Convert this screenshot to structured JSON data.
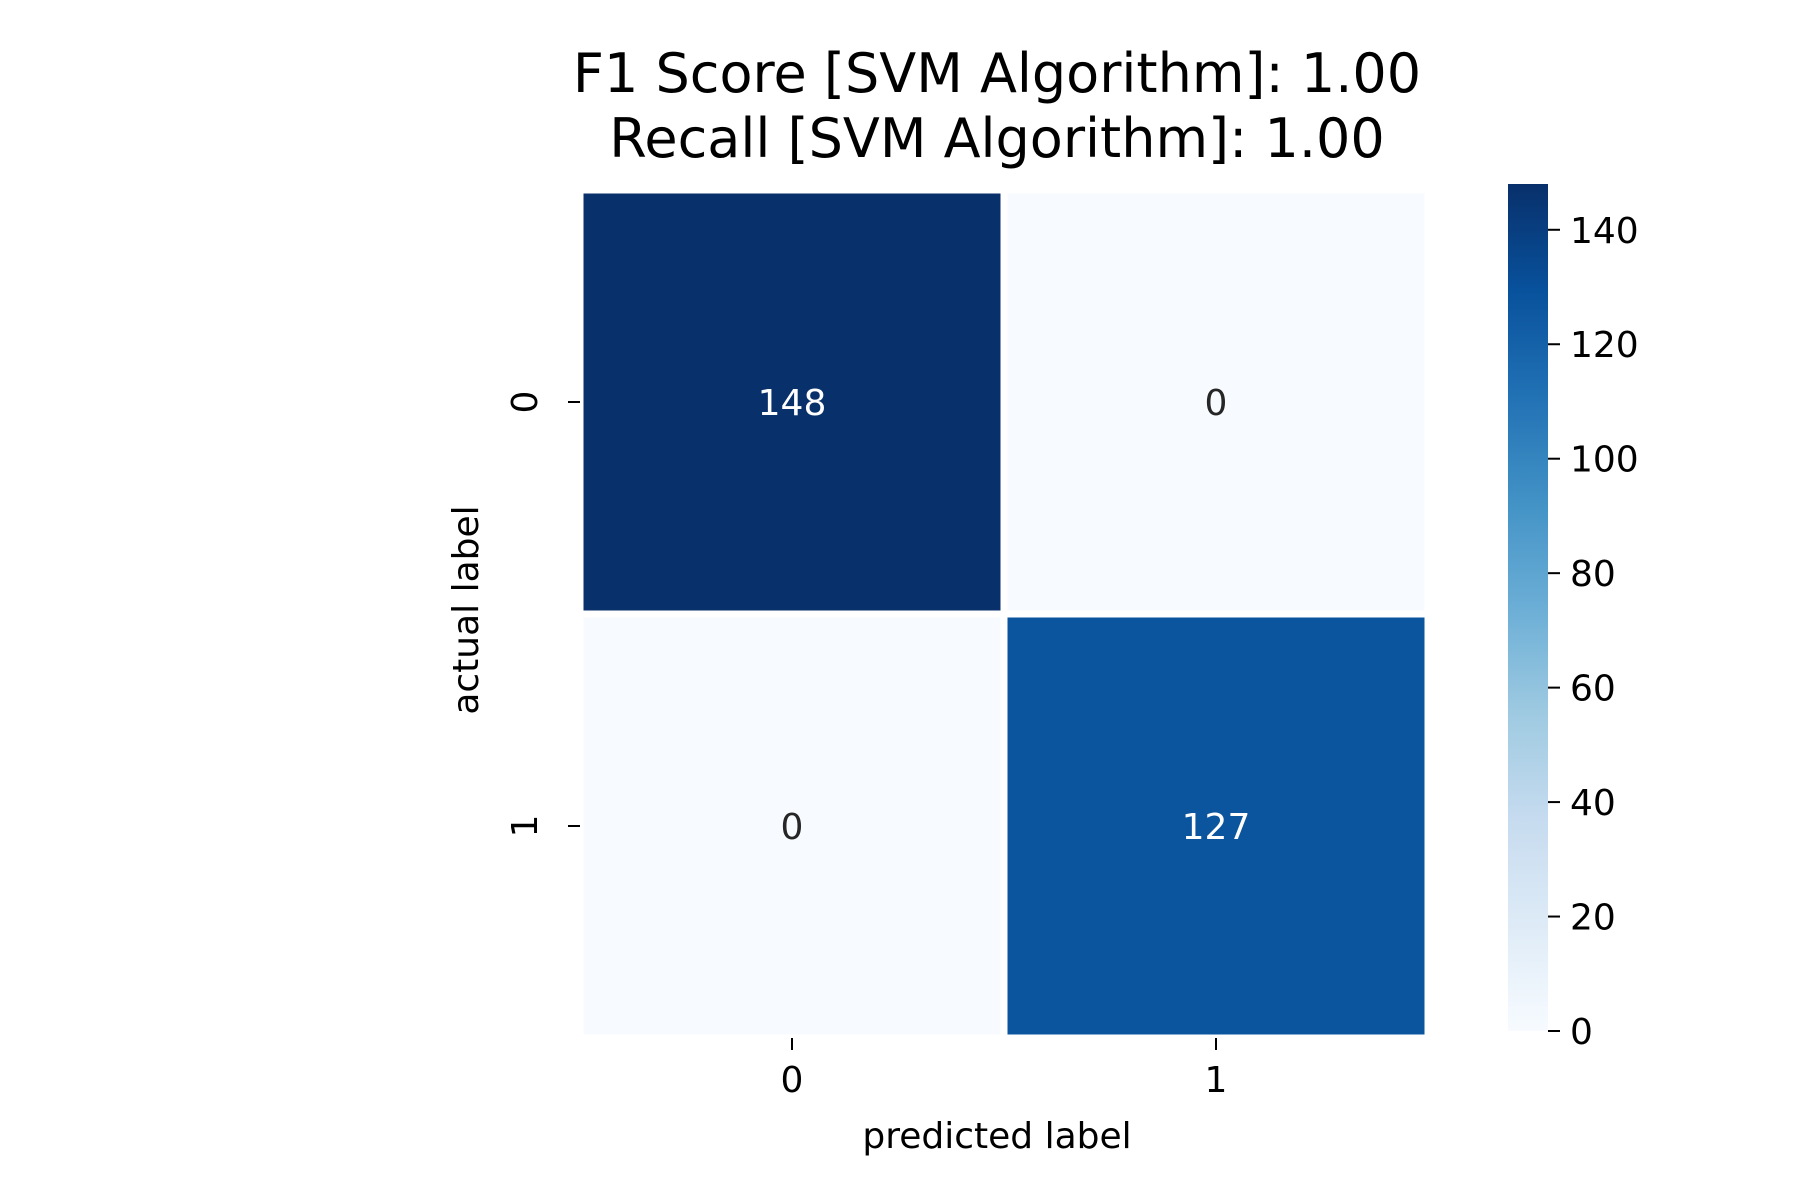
{
  "chart_data": {
    "type": "heatmap",
    "title": "F1 Score [SVM Algorithm]: 1.00",
    "subtitle": "Recall [SVM Algorithm]: 1.00",
    "xlabel": "predicted label",
    "ylabel": "actual label",
    "x_categories": [
      "0",
      "1"
    ],
    "y_categories": [
      "0",
      "1"
    ],
    "matrix": [
      [
        148,
        0
      ],
      [
        0,
        127
      ]
    ],
    "cell_labels": [
      [
        "148",
        "0"
      ],
      [
        "0",
        "127"
      ]
    ],
    "colormap": "Blues",
    "color_range": [
      0,
      148
    ],
    "colorbar_ticks": [
      {
        "value": 0,
        "label": "0"
      },
      {
        "value": 20,
        "label": "20"
      },
      {
        "value": 40,
        "label": "40"
      },
      {
        "value": 60,
        "label": "60"
      },
      {
        "value": 80,
        "label": "80"
      },
      {
        "value": 100,
        "label": "100"
      },
      {
        "value": 120,
        "label": "120"
      },
      {
        "value": 140,
        "label": "140"
      }
    ],
    "grid": false
  }
}
